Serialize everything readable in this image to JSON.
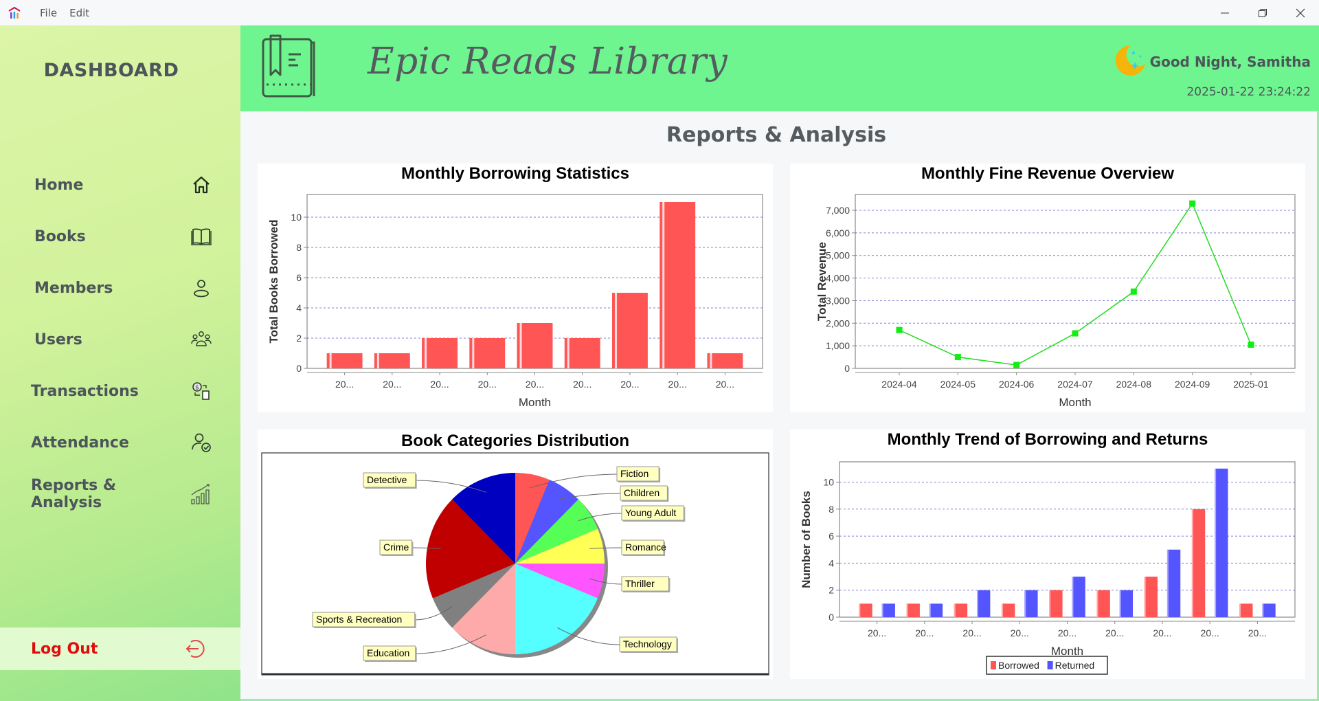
{
  "window": {
    "menu": [
      "File",
      "Edit"
    ],
    "controls": {
      "minimize": "minimize",
      "restore": "restore",
      "close": "close"
    }
  },
  "sidebar": {
    "title": "DASHBOARD",
    "items": [
      {
        "label": "Home",
        "icon": "home-icon"
      },
      {
        "label": "Books",
        "icon": "book-icon"
      },
      {
        "label": "Members",
        "icon": "user-icon"
      },
      {
        "label": "Users",
        "icon": "users-icon"
      },
      {
        "label": "Transactions",
        "icon": "transaction-icon"
      },
      {
        "label": "Attendance",
        "icon": "attendance-icon"
      },
      {
        "label": "Reports & Analysis",
        "icon": "chart-icon"
      }
    ],
    "logout": {
      "label": "Log Out",
      "icon": "logout-icon",
      "color": "#e00c0c"
    }
  },
  "header": {
    "brand": "Epic Reads Library",
    "greeting": "Good Night, Samitha",
    "datetime": "2025-01-22 23:24:22",
    "background": "#6ff58f"
  },
  "page": {
    "title": "Reports & Analysis"
  },
  "chart_data": [
    {
      "id": "borrowing",
      "type": "bar",
      "title": "Monthly Borrowing Statistics",
      "xlabel": "Month",
      "ylabel": "Total Books Borrowed",
      "categories": [
        "20...",
        "20...",
        "20...",
        "20...",
        "20...",
        "20...",
        "20...",
        "20...",
        "20..."
      ],
      "values": [
        1,
        1,
        2,
        2,
        3,
        2,
        5,
        11,
        1
      ],
      "ylim": [
        0,
        11.5
      ],
      "yticks": [
        0,
        2,
        4,
        6,
        8,
        10
      ],
      "grid": true,
      "color": "#ff5555"
    },
    {
      "id": "revenue",
      "type": "line",
      "title": "Monthly Fine Revenue Overview",
      "xlabel": "Month",
      "ylabel": "Total Revenue",
      "categories": [
        "2024-04",
        "2024-05",
        "2024-06",
        "2024-07",
        "2024-08",
        "2024-09",
        "2025-01"
      ],
      "values": [
        1700,
        500,
        150,
        1550,
        3400,
        7300,
        1050
      ],
      "ylim": [
        0,
        7700
      ],
      "yticks": [
        0,
        1000,
        2000,
        3000,
        4000,
        5000,
        6000,
        7000
      ],
      "ytick_labels": [
        "0",
        "1,000",
        "2,000",
        "3,000",
        "4,000",
        "5,000",
        "6,000",
        "7,000"
      ],
      "grid": true,
      "color": "#22dd22"
    },
    {
      "id": "categories",
      "type": "pie",
      "title": "Book Categories Distribution",
      "labels": [
        "Fiction",
        "Children",
        "Young Adult",
        "Romance",
        "Thriller",
        "Technology",
        "Education",
        "Sports & Recreation",
        "Crime",
        "Detective"
      ],
      "values": [
        1,
        1,
        1,
        1,
        1,
        3,
        2,
        1,
        3,
        2
      ],
      "colors": [
        "#ff5555",
        "#5555ff",
        "#55ff55",
        "#ffff55",
        "#ff55ff",
        "#55ffff",
        "#ffaaaa",
        "#808080",
        "#c00000",
        "#0000c0"
      ]
    },
    {
      "id": "trend",
      "type": "bar",
      "title": "Monthly Trend of Borrowing and Returns",
      "xlabel": "Month",
      "ylabel": "Number of Books",
      "categories": [
        "20...",
        "20...",
        "20...",
        "20...",
        "20...",
        "20...",
        "20...",
        "20...",
        "20..."
      ],
      "series": [
        {
          "name": "Borrowed",
          "values": [
            1,
            1,
            1,
            1,
            2,
            2,
            3,
            8,
            1
          ],
          "color": "#ff5555"
        },
        {
          "name": "Returned",
          "values": [
            1,
            1,
            2,
            2,
            3,
            2,
            5,
            11,
            1
          ],
          "color": "#5555ff"
        }
      ],
      "ylim": [
        0,
        11.5
      ],
      "yticks": [
        0,
        2,
        4,
        6,
        8,
        10
      ],
      "grid": true,
      "legend_position": "bottom"
    }
  ]
}
